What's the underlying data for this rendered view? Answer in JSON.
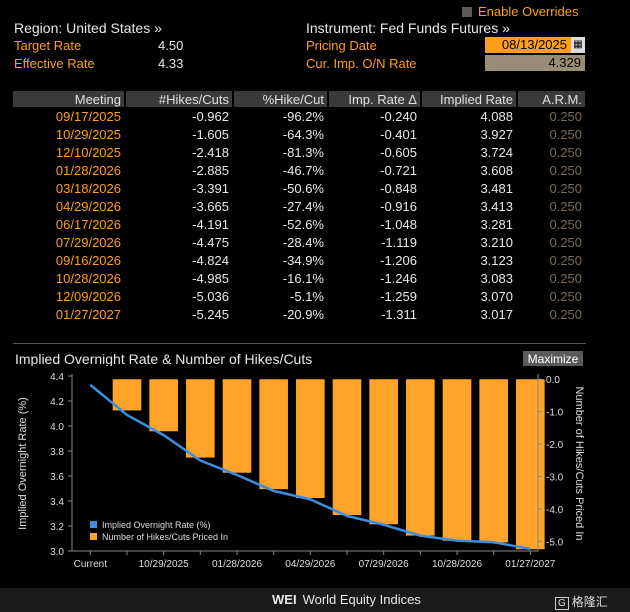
{
  "header": {
    "region_label": "Region: United States »",
    "target_label": "Target Rate",
    "target_value": "4.50",
    "effective_label": "Effective Rate",
    "effective_value": "4.33",
    "instrument_label": "Instrument: Fed Funds Futures »",
    "pricing_date_label": "Pricing Date",
    "pricing_date_value": "08/13/2025",
    "on_rate_label": "Cur. Imp. O/N Rate",
    "on_rate_value": "4.329",
    "overrides_label": "Enable Overrides"
  },
  "table": {
    "headers": [
      "Meeting",
      "#Hikes/Cuts",
      "%Hike/Cut",
      "Imp. Rate Δ",
      "Implied Rate",
      "A.R.M."
    ],
    "rows": [
      [
        "09/17/2025",
        "-0.962",
        "-96.2%",
        "-0.240",
        "4.088",
        "0.250"
      ],
      [
        "10/29/2025",
        "-1.605",
        "-64.3%",
        "-0.401",
        "3.927",
        "0.250"
      ],
      [
        "12/10/2025",
        "-2.418",
        "-81.3%",
        "-0.605",
        "3.724",
        "0.250"
      ],
      [
        "01/28/2026",
        "-2.885",
        "-46.7%",
        "-0.721",
        "3.608",
        "0.250"
      ],
      [
        "03/18/2026",
        "-3.391",
        "-50.6%",
        "-0.848",
        "3.481",
        "0.250"
      ],
      [
        "04/29/2026",
        "-3.665",
        "-27.4%",
        "-0.916",
        "3.413",
        "0.250"
      ],
      [
        "06/17/2026",
        "-4.191",
        "-52.6%",
        "-1.048",
        "3.281",
        "0.250"
      ],
      [
        "07/29/2026",
        "-4.475",
        "-28.4%",
        "-1.119",
        "3.210",
        "0.250"
      ],
      [
        "09/16/2026",
        "-4.824",
        "-34.9%",
        "-1.206",
        "3.123",
        "0.250"
      ],
      [
        "10/28/2026",
        "-4.985",
        "-16.1%",
        "-1.246",
        "3.083",
        "0.250"
      ],
      [
        "12/09/2026",
        "-5.036",
        "-5.1%",
        "-1.259",
        "3.070",
        "0.250"
      ],
      [
        "01/27/2027",
        "-5.245",
        "-20.9%",
        "-1.311",
        "3.017",
        "0.250"
      ]
    ]
  },
  "chart": {
    "title": "Implied Overnight Rate & Number of Hikes/Cuts",
    "maximize_label": "Maximize"
  },
  "chart_data": {
    "type": "bar",
    "categories": [
      "Current",
      "09/17/2025",
      "10/29/2025",
      "12/10/2025",
      "01/28/2026",
      "03/18/2026",
      "04/29/2026",
      "06/17/2026",
      "07/29/2026",
      "09/16/2026",
      "10/28/2026",
      "12/09/2026",
      "01/27/2027"
    ],
    "x_tick_labels": [
      "Current",
      "10/29/2025",
      "01/28/2026",
      "04/29/2026",
      "07/29/2026",
      "10/28/2026",
      "01/27/2027"
    ],
    "series": [
      {
        "name": "Implied Overnight Rate (%)",
        "type": "line",
        "axis": "left",
        "color": "#3b8ee0",
        "values": [
          4.329,
          4.088,
          3.927,
          3.724,
          3.608,
          3.481,
          3.413,
          3.281,
          3.21,
          3.123,
          3.083,
          3.07,
          3.017
        ]
      },
      {
        "name": "Number of Hikes/Cuts Priced In",
        "type": "bar",
        "axis": "right",
        "color": "#ffa329",
        "values": [
          0,
          -0.962,
          -1.605,
          -2.418,
          -2.885,
          -3.391,
          -3.665,
          -4.191,
          -4.475,
          -4.824,
          -4.985,
          -5.036,
          -5.245
        ]
      }
    ],
    "ylabel": "Implied Overnight Rate (%)",
    "ylabel_right": "Number of Hikes/Cuts Priced In",
    "ylim": [
      3.0,
      4.4
    ],
    "yticks": [
      "4.4",
      "4.2",
      "4.0",
      "3.8",
      "3.6",
      "3.4",
      "3.2",
      "3.0"
    ],
    "ylim_right": [
      -5.3,
      0.1
    ],
    "yticks_right": [
      "0.0",
      "-1.0",
      "-2.0",
      "-3.0",
      "-4.0",
      "-5.0"
    ],
    "legend_position": "bottom-left"
  },
  "footer": {
    "code": "WEI",
    "name": "World Equity Indices",
    "watermark": "格隆汇"
  }
}
